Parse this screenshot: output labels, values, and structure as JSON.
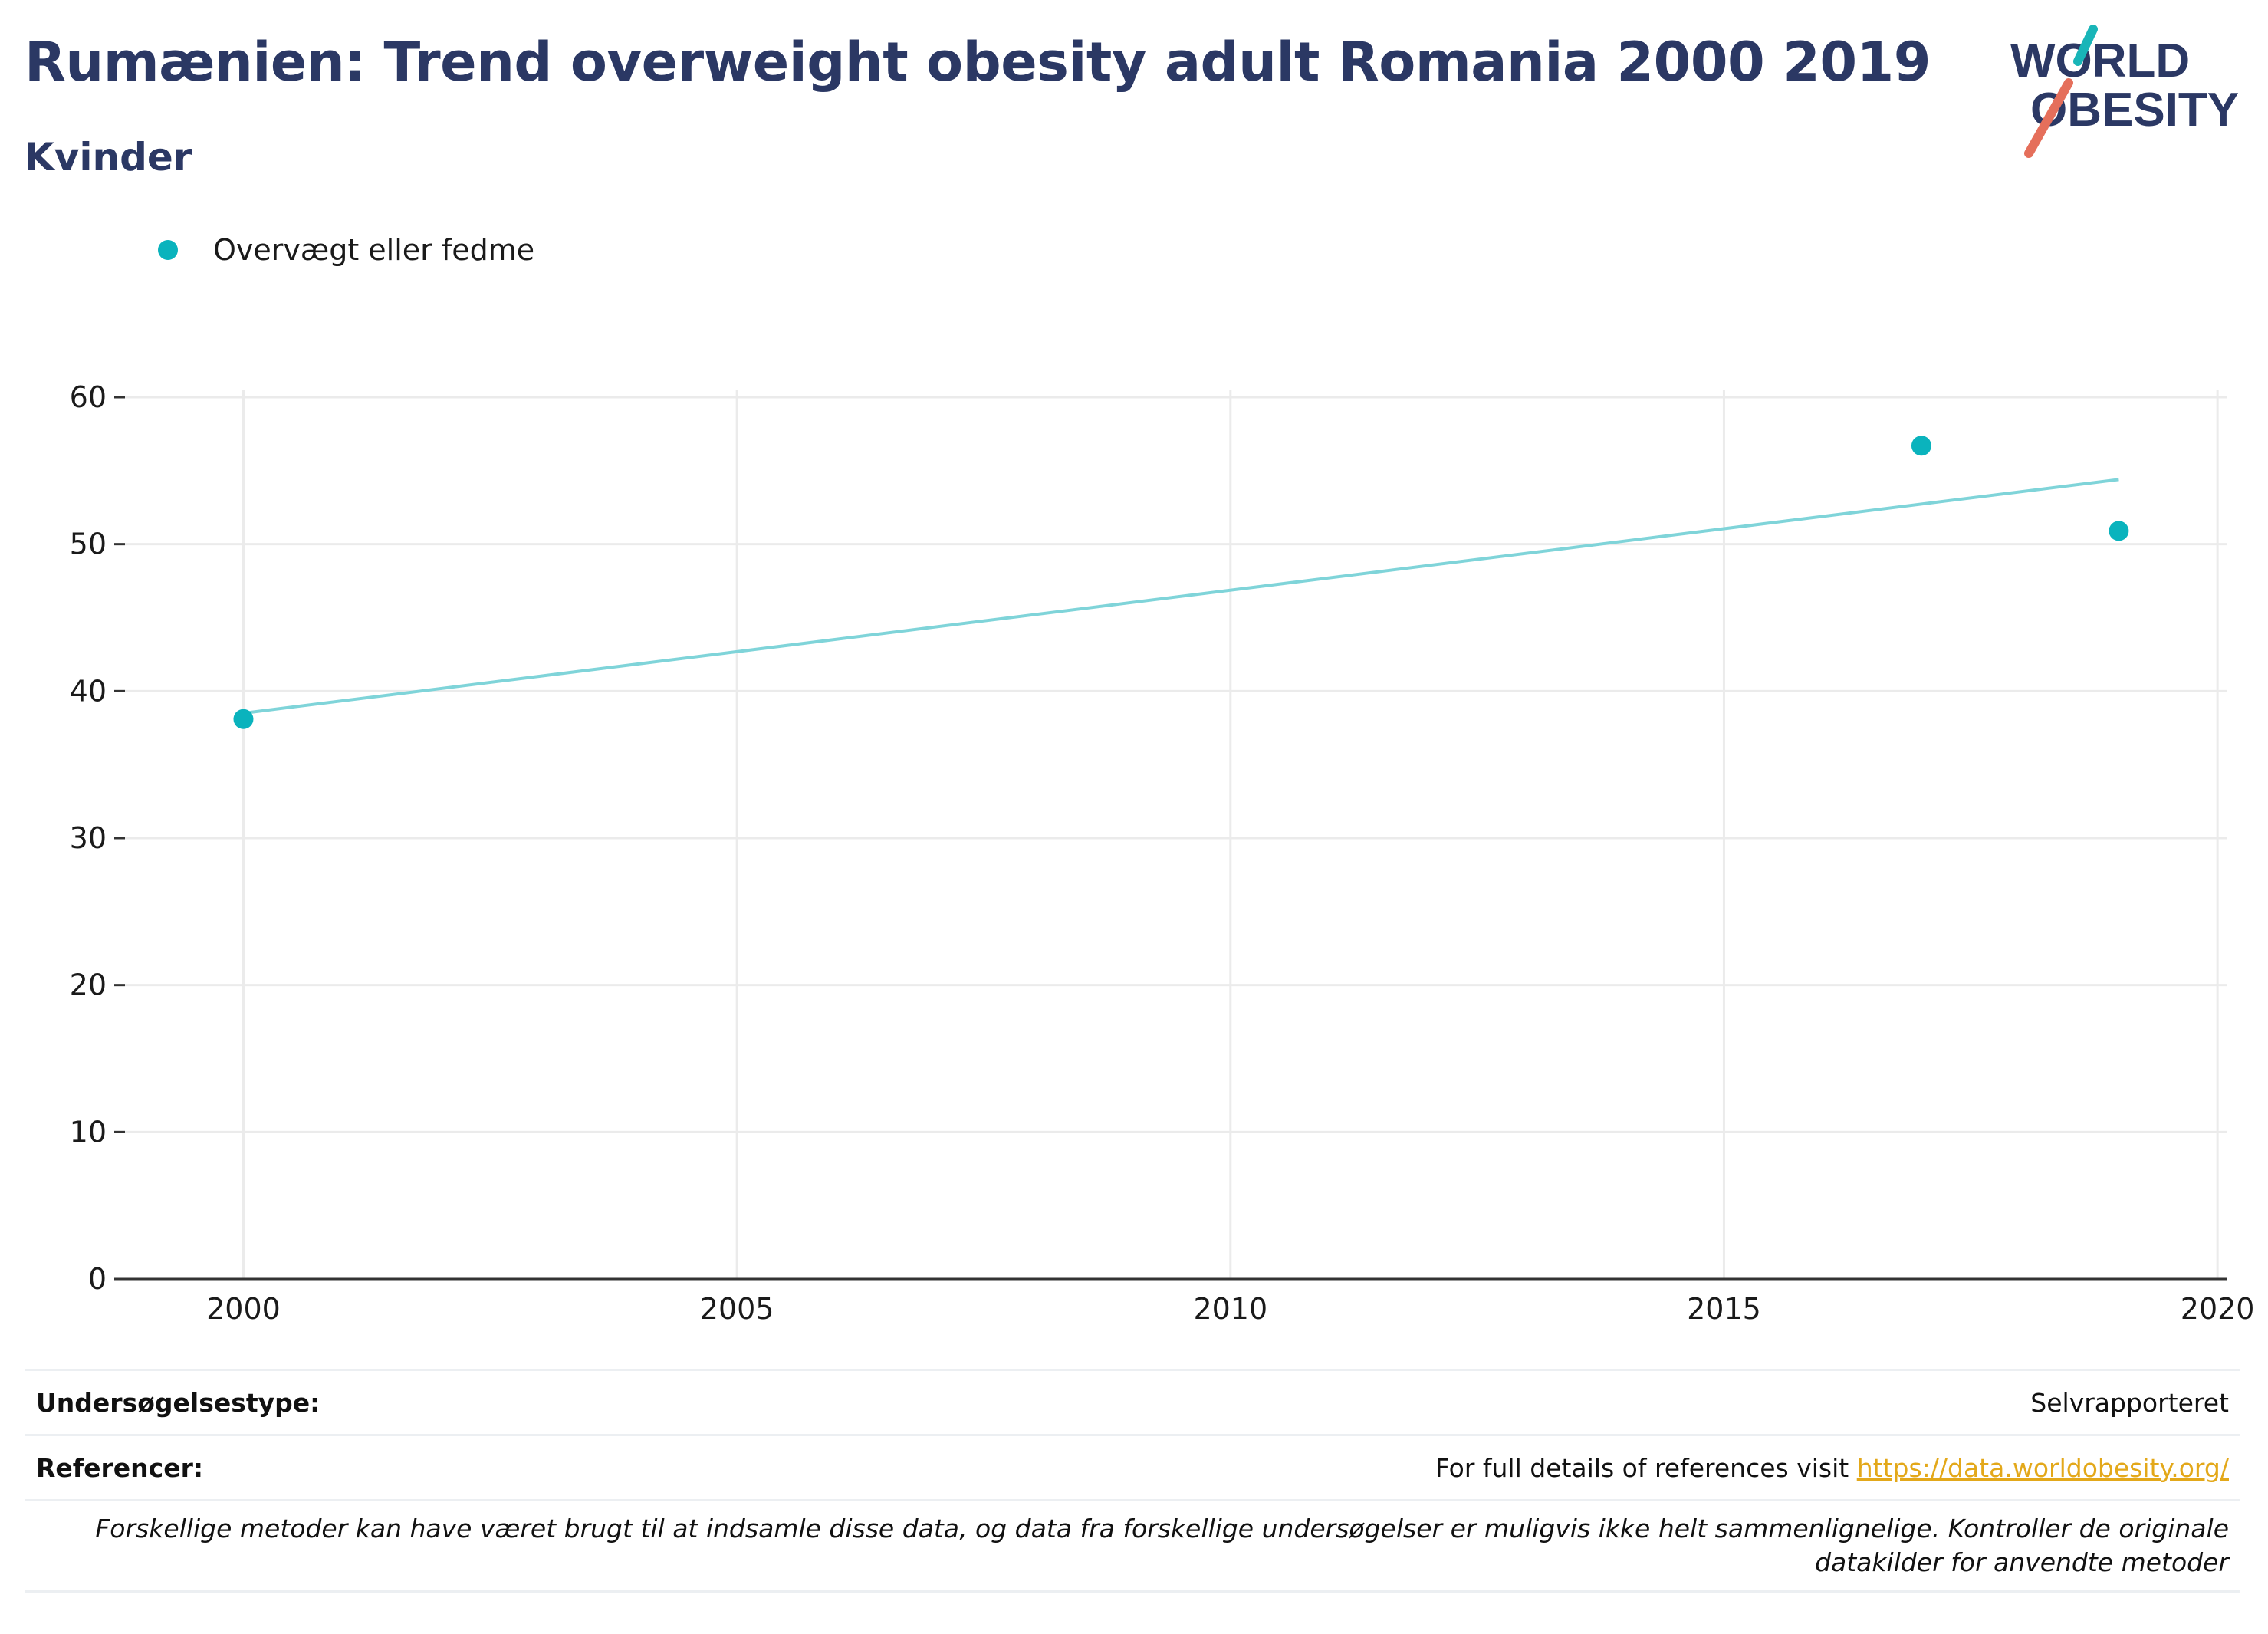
{
  "title": "Rumænien: Trend overweight obesity adult Romania 2000 2019",
  "subtitle": "Kvinder",
  "logo": {
    "line1": "WORLD",
    "line2": "OBESITY"
  },
  "legend": {
    "label": "Overvægt eller fedme",
    "color": "#0ab3bd"
  },
  "colors": {
    "title": "#2b3864",
    "points": "#0ab3bd",
    "trend": "#7fd4d9",
    "link": "#e3a81a",
    "grid": "#ebebeb"
  },
  "chart_data": {
    "type": "scatter",
    "xlim": [
      1998.8,
      2020.1
    ],
    "ylim": [
      0,
      60
    ],
    "x_ticks": [
      2000,
      2005,
      2010,
      2015,
      2020
    ],
    "y_ticks": [
      0,
      10,
      20,
      30,
      40,
      50,
      60
    ],
    "grid": true,
    "legend_position": "top-left",
    "series": [
      {
        "name": "Overvægt eller fedme",
        "x": [
          2000,
          2017,
          2019
        ],
        "y": [
          38.1,
          56.7,
          50.9
        ]
      }
    ],
    "trendline": {
      "x": [
        2000,
        2019
      ],
      "y": [
        38.5,
        54.4
      ]
    }
  },
  "footer": {
    "survey_type_label": "Undersøgelsestype:",
    "survey_type_value": "Selvrapporteret",
    "references_label": "Referencer:",
    "references_text": "For full details of references visit ",
    "references_link": "https://data.worldobesity.org/",
    "disclaimer": "Forskellige metoder kan have været brugt til at indsamle disse data, og data fra forskellige undersøgelser er muligvis ikke helt sammenlignelige. Kontroller de originale datakilder for anvendte metoder"
  }
}
